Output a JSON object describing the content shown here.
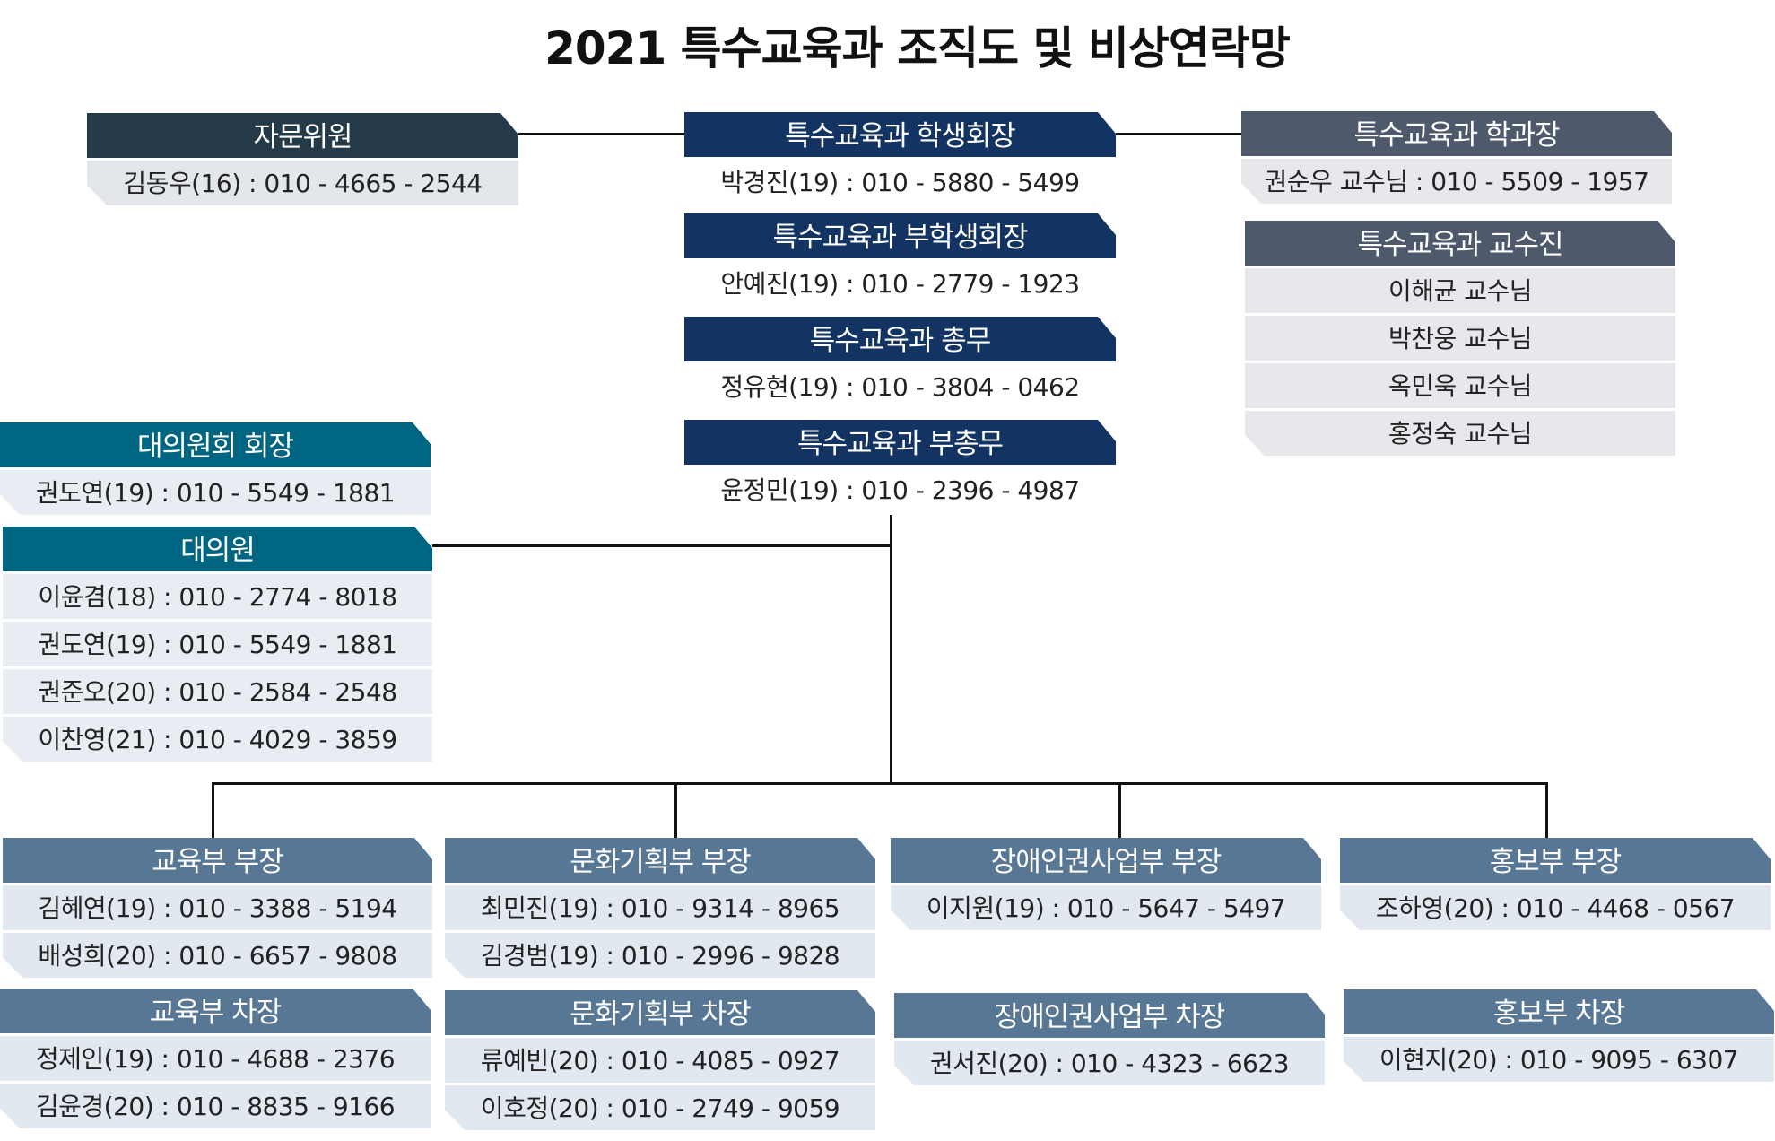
{
  "title": "2021 특수교육과 조직도 및 비상연락망",
  "colors": {
    "advisor": "#243a48",
    "council_exec": "#133462",
    "faculty": "#4e5a6c",
    "delegates": "#006580",
    "departments": "#587795",
    "row_advisor": "#e3e6ea",
    "row_exec": "#d5dee9",
    "row_faculty": "#e6e8eb",
    "row_delegates": "#e8edf3",
    "row_departments": "#e1e8f0"
  },
  "groups": [
    {
      "id": "advisor",
      "header": "자문위원",
      "theme": "advisor",
      "rows": [
        "김동우(16) : 010  -  4665 - 2544"
      ]
    },
    {
      "id": "president",
      "header": "특수교육과 학생회장",
      "theme": "council_exec",
      "rows": [
        "박경진(19) : 010  -  5880 - 5499"
      ]
    },
    {
      "id": "vice_president",
      "header": "특수교육과 부학생회장",
      "theme": "council_exec",
      "rows": [
        "안예진(19) : 010  -  2779 - 1923"
      ]
    },
    {
      "id": "secretary",
      "header": "특수교육과 총무",
      "theme": "council_exec",
      "rows": [
        "정유현(19) : 010  -  3804 - 0462"
      ]
    },
    {
      "id": "vice_secretary",
      "header": "특수교육과 부총무",
      "theme": "council_exec",
      "rows": [
        "윤정민(19) : 010  -  2396 - 4987"
      ]
    },
    {
      "id": "dept_head",
      "header": "특수교육과 학과장",
      "theme": "faculty",
      "rows": [
        "권순우 교수님 : 010 - 5509 - 1957"
      ]
    },
    {
      "id": "faculty",
      "header": "특수교육과 교수진",
      "theme": "faculty",
      "rows": [
        "이해균 교수님",
        "박찬웅 교수님",
        "옥민욱 교수님",
        "홍정숙 교수님"
      ]
    },
    {
      "id": "delegate_chair",
      "header": "대의원회 회장",
      "theme": "delegates",
      "rows": [
        "권도연(19) : 010  -  5549 - 1881"
      ]
    },
    {
      "id": "delegates",
      "header": "대의원",
      "theme": "delegates",
      "rows": [
        "이윤겸(18) : 010  -  2774 - 8018",
        "권도연(19) : 010  -  5549 - 1881",
        "권준오(20) : 010  -  2584 - 2548",
        "이찬영(21) : 010  -  4029 - 3859"
      ]
    },
    {
      "id": "edu_head",
      "header": "교육부 부장",
      "theme": "departments",
      "rows": [
        "김혜연(19) : 010  -  3388 - 5194",
        "배성희(20) : 010  -  6657 - 9808"
      ]
    },
    {
      "id": "edu_deputy",
      "header": "교육부 차장",
      "theme": "departments",
      "rows": [
        "정제인(19) : 010  -  4688 - 2376",
        "김윤경(20) : 010  -  8835 - 9166"
      ]
    },
    {
      "id": "culture_head",
      "header": "문화기획부 부장",
      "theme": "departments",
      "rows": [
        "최민진(19) : 010  -  9314 - 8965",
        "김경범(19) : 010  -  2996 - 9828"
      ]
    },
    {
      "id": "culture_deputy",
      "header": "문화기획부 차장",
      "theme": "departments",
      "rows": [
        "류예빈(20) : 010  -  4085 - 0927",
        "이호정(20) : 010  -  2749 - 9059"
      ]
    },
    {
      "id": "rights_head",
      "header": "장애인권사업부 부장",
      "theme": "departments",
      "rows": [
        "이지원(19) : 010  -  5647 - 5497"
      ]
    },
    {
      "id": "rights_deputy",
      "header": "장애인권사업부 차장",
      "theme": "departments",
      "rows": [
        "권서진(20) : 010  -  4323 - 6623"
      ]
    },
    {
      "id": "pr_head",
      "header": "홍보부 부장",
      "theme": "departments",
      "rows": [
        "조하영(20) : 010  -  4468 - 0567"
      ]
    },
    {
      "id": "pr_deputy",
      "header": "홍보부 차장",
      "theme": "departments",
      "rows": [
        "이현지(20) : 010  -  9095 - 6307"
      ]
    }
  ]
}
